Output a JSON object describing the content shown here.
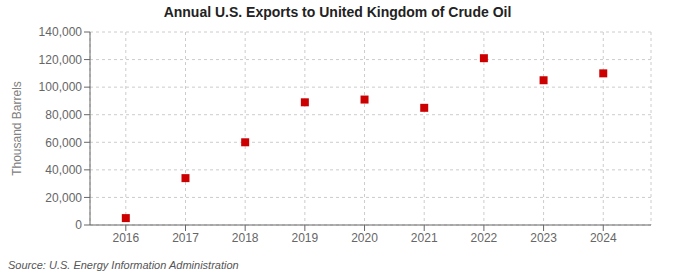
{
  "chart_data": {
    "type": "scatter",
    "title": "Annual U.S. Exports to United Kingdom of Crude Oil",
    "y_label": "Thousand Barrels",
    "annotations": [
      "Source: U.S. Energy Information Administration"
    ],
    "x": [
      2016,
      2017,
      2018,
      2019,
      2020,
      2021,
      2022,
      2023,
      2024
    ],
    "values": [
      5000,
      34000,
      60000,
      89000,
      91000,
      85000,
      121000,
      105000,
      110000
    ],
    "color": "#cc0000",
    "marker": "square",
    "xlim": [
      2015.4,
      2024.8
    ],
    "xticks": [
      2016,
      2017,
      2018,
      2019,
      2020,
      2021,
      2022,
      2023,
      2024
    ],
    "ylim": [
      0,
      140000
    ],
    "yticks": [
      0,
      {
        "value": 20000,
        "label": "20,000"
      },
      {
        "value": 40000,
        "label": "40,000"
      },
      {
        "value": 60000,
        "label": "60,000"
      },
      {
        "value": 80000,
        "label": "80,000"
      },
      {
        "value": 100000,
        "label": "100,000"
      },
      {
        "value": 120000,
        "label": "120,000"
      },
      {
        "value": 140000,
        "label": "140,000"
      }
    ],
    "grid": true
  }
}
